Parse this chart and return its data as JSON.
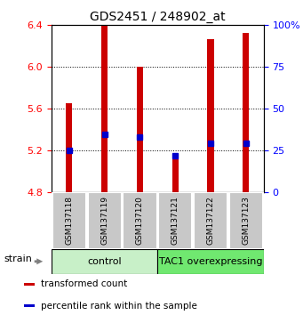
{
  "title": "GDS2451 / 248902_at",
  "samples": [
    "GSM137118",
    "GSM137119",
    "GSM137120",
    "GSM137121",
    "GSM137122",
    "GSM137123"
  ],
  "bar_bottom": 4.8,
  "bar_tops": [
    5.65,
    6.4,
    6.0,
    5.13,
    6.27,
    6.33
  ],
  "percentile_values": [
    5.2,
    5.35,
    5.33,
    5.15,
    5.27,
    5.27
  ],
  "ylim": [
    4.8,
    6.4
  ],
  "y_ticks_left": [
    4.8,
    5.2,
    5.6,
    6.0,
    6.4
  ],
  "right_yticks": [
    0,
    25,
    50,
    75,
    100
  ],
  "groups": [
    {
      "label": "control",
      "start": 0,
      "end": 3,
      "color": "#c8f0c8"
    },
    {
      "label": "TAC1 overexpressing",
      "start": 3,
      "end": 6,
      "color": "#70e870"
    }
  ],
  "bar_color": "#cc0000",
  "marker_color": "#0000cc",
  "bar_width": 0.18,
  "legend_items": [
    {
      "color": "#cc0000",
      "label": "transformed count"
    },
    {
      "color": "#0000cc",
      "label": "percentile rank within the sample"
    }
  ],
  "strain_label": "strain",
  "xlabel_area_color": "#c8c8c8",
  "title_fontsize": 10,
  "sample_fontsize": 6.5,
  "group_fontsize": 8,
  "legend_fontsize": 7.5
}
